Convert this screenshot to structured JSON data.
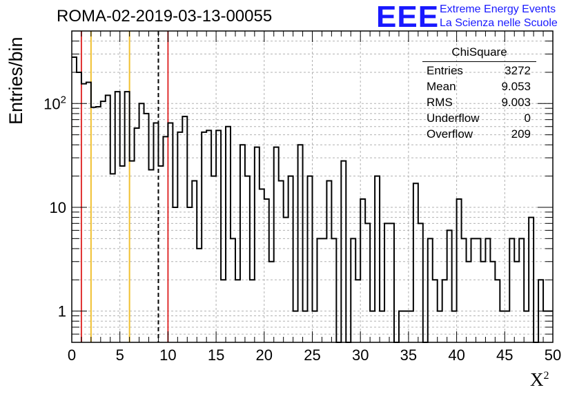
{
  "title": "ROMA-02-2019-03-13-00055",
  "logo": {
    "mark": "EEE",
    "line1": "Extreme Energy Events",
    "line2": "La Scienza nelle Scuole"
  },
  "stats": {
    "title": "ChiSquare",
    "rows": [
      {
        "label": "Entries",
        "value": "3272"
      },
      {
        "label": "Mean",
        "value": "9.053"
      },
      {
        "label": "RMS",
        "value": "9.003"
      },
      {
        "label": "Underflow",
        "value": "0"
      },
      {
        "label": "Overflow",
        "value": "209"
      }
    ]
  },
  "chart_data": {
    "type": "histogram",
    "title": "ROMA-02-2019-03-13-00055",
    "xlabel": "χ²",
    "ylabel": "Entries/bin",
    "xlim": [
      0,
      50
    ],
    "ylim": [
      0.5,
      500
    ],
    "yscale": "log",
    "grid": true,
    "bin_width": 0.5,
    "x_ticks": [
      0,
      5,
      10,
      15,
      20,
      25,
      30,
      35,
      40,
      45,
      50
    ],
    "y_ticks": [
      {
        "value": 1,
        "label": "1"
      },
      {
        "value": 10,
        "label": "10"
      },
      {
        "value": 100,
        "label": "10²"
      }
    ],
    "values": [
      280,
      200,
      155,
      160,
      92,
      93,
      105,
      120,
      21,
      130,
      25,
      130,
      28,
      58,
      100,
      80,
      23,
      65,
      25,
      48,
      65,
      10,
      53,
      75,
      10,
      18,
      4,
      53,
      55,
      20,
      55,
      2,
      60,
      5,
      2,
      40,
      20,
      2,
      38,
      15,
      12,
      3,
      38,
      18,
      8,
      20,
      1,
      40,
      1,
      20,
      1,
      5,
      5,
      18,
      5,
      0,
      28,
      0,
      5,
      2,
      12,
      7,
      1,
      20,
      1,
      7,
      7,
      0,
      1,
      1,
      1,
      17,
      7,
      0,
      5,
      2,
      1,
      2,
      6,
      1,
      12,
      5,
      3,
      5,
      5,
      3,
      5,
      3,
      2,
      1,
      1,
      5,
      3,
      5,
      1,
      8,
      0.5,
      2,
      1,
      1
    ],
    "vlines": [
      {
        "x": 1,
        "color": "#e03030",
        "style": "solid"
      },
      {
        "x": 2,
        "color": "#f0c030",
        "style": "solid"
      },
      {
        "x": 6,
        "color": "#f0c030",
        "style": "solid"
      },
      {
        "x": 9,
        "color": "#000000",
        "style": "dashed"
      },
      {
        "x": 10,
        "color": "#e03030",
        "style": "solid"
      }
    ]
  }
}
